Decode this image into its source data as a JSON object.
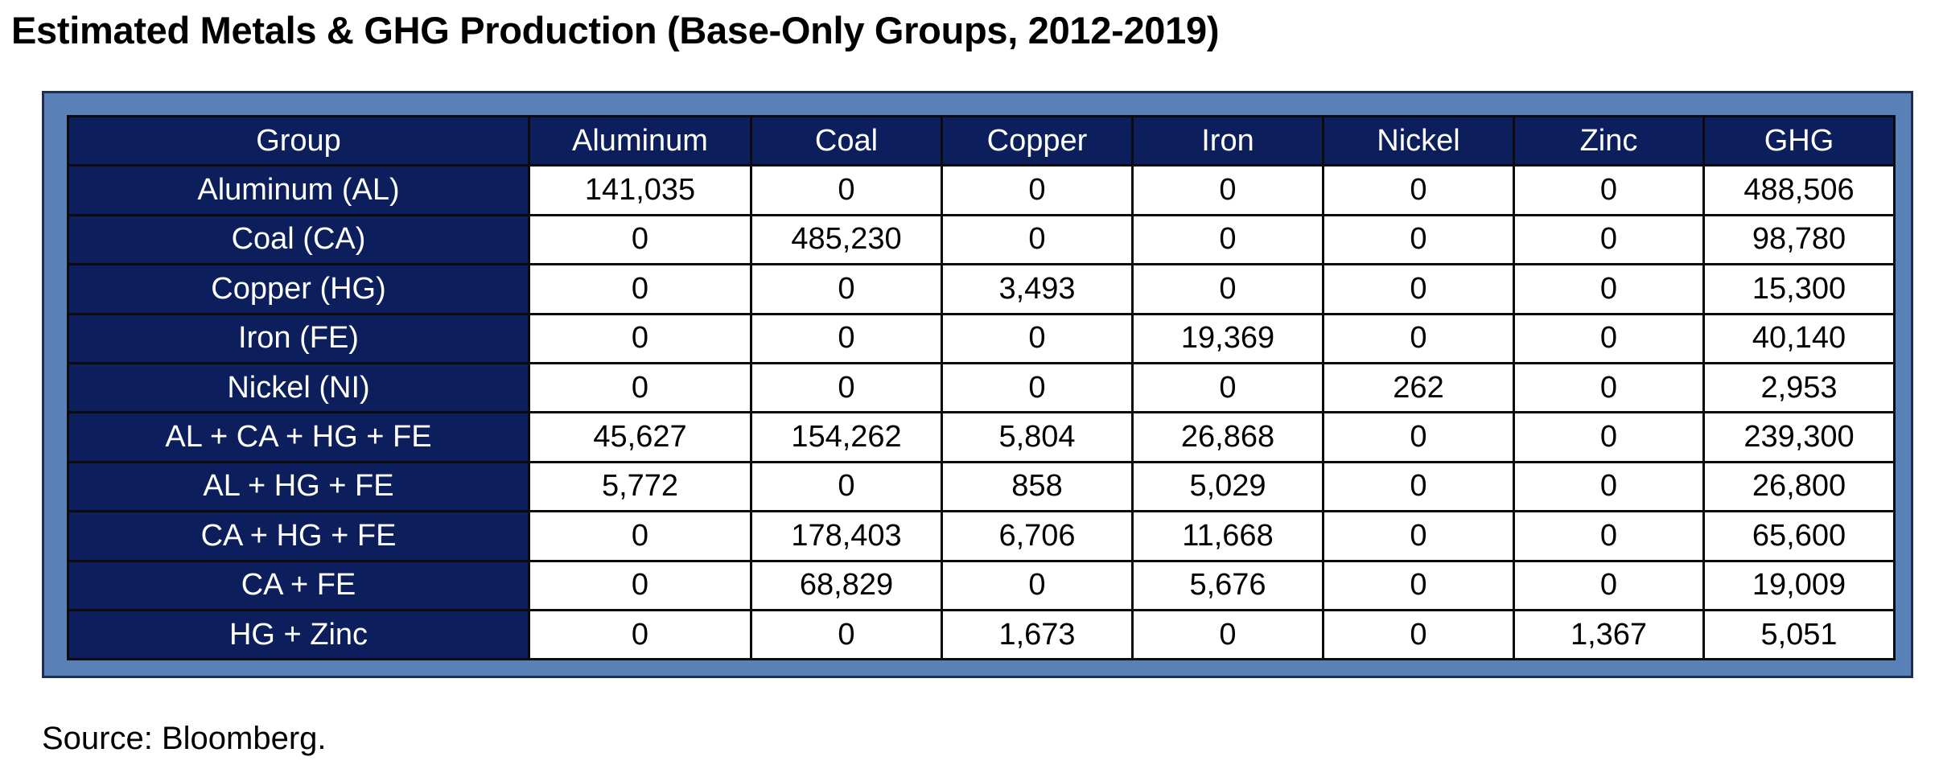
{
  "page": {
    "title": "Estimated Metals & GHG Production (Base-Only Groups, 2012-2019)",
    "source": "Source:  Bloomberg."
  },
  "colors": {
    "header_bg": "#0c1e5c",
    "frame_bg": "#5a80b8",
    "cell_bg": "#ffffff"
  },
  "chart_data": {
    "type": "table",
    "title": "Estimated Metals & GHG Production (Base-Only Groups, 2012-2019)",
    "columns": [
      "Group",
      "Aluminum",
      "Coal",
      "Copper",
      "Iron",
      "Nickel",
      "Zinc",
      "GHG"
    ],
    "rows": [
      [
        "Aluminum (AL)",
        "141,035",
        "0",
        "0",
        "0",
        "0",
        "0",
        "488,506"
      ],
      [
        "Coal (CA)",
        "0",
        "485,230",
        "0",
        "0",
        "0",
        "0",
        "98,780"
      ],
      [
        "Copper (HG)",
        "0",
        "0",
        "3,493",
        "0",
        "0",
        "0",
        "15,300"
      ],
      [
        "Iron (FE)",
        "0",
        "0",
        "0",
        "19,369",
        "0",
        "0",
        "40,140"
      ],
      [
        "Nickel (NI)",
        "0",
        "0",
        "0",
        "0",
        "262",
        "0",
        "2,953"
      ],
      [
        "AL + CA + HG + FE",
        "45,627",
        "154,262",
        "5,804",
        "26,868",
        "0",
        "0",
        "239,300"
      ],
      [
        "AL + HG + FE",
        "5,772",
        "0",
        "858",
        "5,029",
        "0",
        "0",
        "26,800"
      ],
      [
        "CA + HG + FE",
        "0",
        "178,403",
        "6,706",
        "11,668",
        "0",
        "0",
        "65,600"
      ],
      [
        "CA + FE",
        "0",
        "68,829",
        "0",
        "5,676",
        "0",
        "0",
        "19,009"
      ],
      [
        "HG + Zinc",
        "0",
        "0",
        "1,673",
        "0",
        "0",
        "1,367",
        "5,051"
      ]
    ],
    "source": "Source:  Bloomberg."
  }
}
